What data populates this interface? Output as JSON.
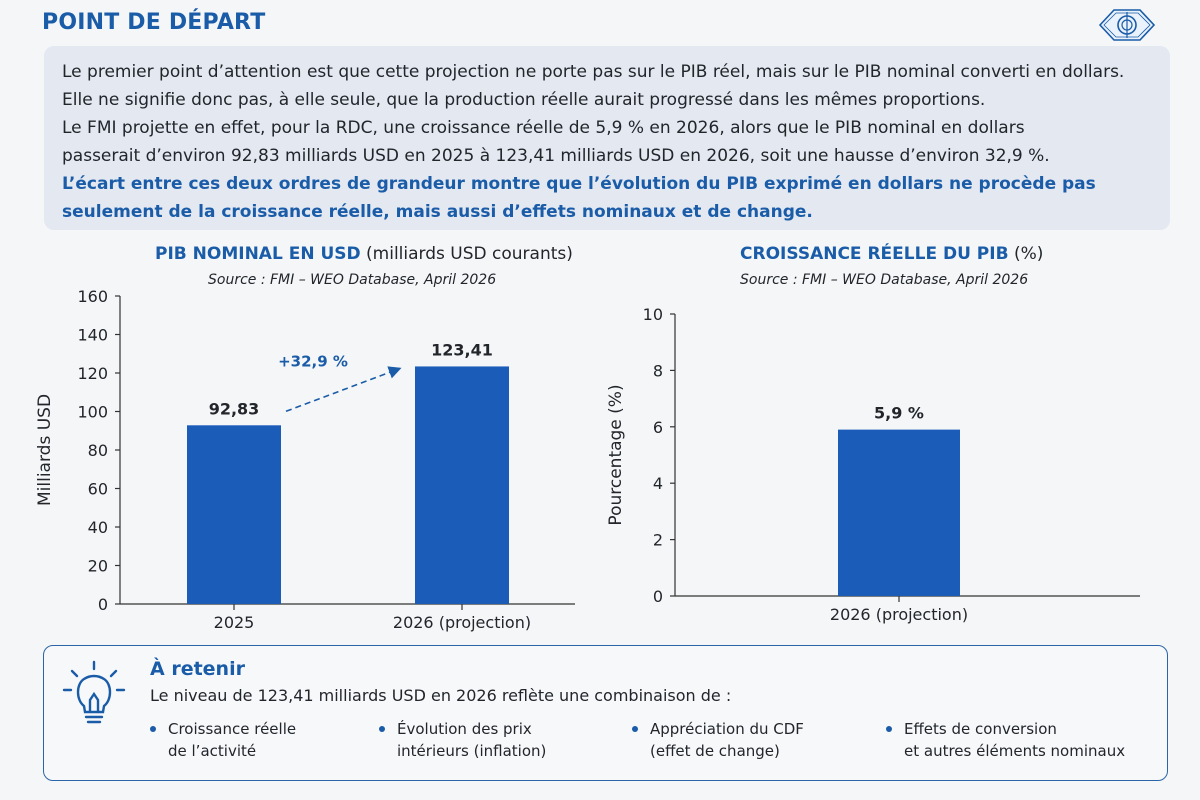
{
  "header": {
    "title": "POINT DE DÉPART"
  },
  "intro": {
    "line1": "Le premier point d’attention est que cette projection ne porte pas sur le PIB réel, mais sur le PIB nominal converti en dollars.",
    "line2": "Elle ne signifie donc pas, à elle seule, que la production réelle aurait progressé dans les mêmes proportions.",
    "line3": "Le FMI projette en effet, pour la RDC, une croissance réelle de 5,9 % en 2026, alors que le PIB nominal en dollars",
    "line4": "passerait d’environ 92,83 milliards USD en 2025 à 123,41 milliards USD en 2026, soit une hausse d’environ 32,9 %.",
    "highlight1": "L’écart entre ces deux ordres de grandeur montre que l’évolution du PIB exprimé en dollars ne procède pas",
    "highlight2": "seulement de la croissance réelle, mais aussi d’effets nominaux et de change."
  },
  "chart_data": [
    {
      "type": "bar",
      "title": "PIB NOMINAL EN USD",
      "title_suffix": "(milliards USD courants)",
      "source": "Source : FMI – WEO Database, April 2026",
      "ylabel": "Milliards USD",
      "xlabel": "",
      "categories": [
        "2025",
        "2026 (projection)"
      ],
      "values": [
        92.83,
        123.41
      ],
      "value_labels": [
        "92,83",
        "123,41"
      ],
      "yticks": [
        0,
        20,
        40,
        60,
        80,
        100,
        120,
        140,
        160
      ],
      "ylim": [
        0,
        160
      ],
      "annotation": "+32,9 %",
      "bar_color": "#1a5cb8",
      "grid": false
    },
    {
      "type": "bar",
      "title": "CROISSANCE RÉELLE DU PIB",
      "title_suffix": "(%)",
      "source": "Source : FMI – WEO Database, April 2026",
      "ylabel": "Pourcentage (%)",
      "xlabel": "",
      "categories": [
        "2026 (projection)"
      ],
      "values": [
        5.9
      ],
      "value_labels": [
        "5,9 %"
      ],
      "yticks": [
        0,
        2,
        4,
        6,
        8,
        10
      ],
      "ylim": [
        0,
        10
      ],
      "bar_color": "#1a5cb8",
      "grid": false
    }
  ],
  "retain": {
    "title": "À retenir",
    "text": "Le niveau de 123,41 milliards USD en 2026 reflète une combinaison de :",
    "icon": "lightbulb-icon",
    "items": [
      {
        "line1": "Croissance réelle",
        "line2": "de l’activité"
      },
      {
        "line1": "Évolution des prix",
        "line2": "intérieurs (inflation)"
      },
      {
        "line1": "Appréciation du CDF",
        "line2": "(effet de change)"
      },
      {
        "line1": "Effets de conversion",
        "line2": "et autres éléments nominaux"
      }
    ]
  },
  "colors": {
    "accent": "#1a5ca8",
    "bar": "#1a5cb8",
    "panel": "#e3e8f1"
  }
}
